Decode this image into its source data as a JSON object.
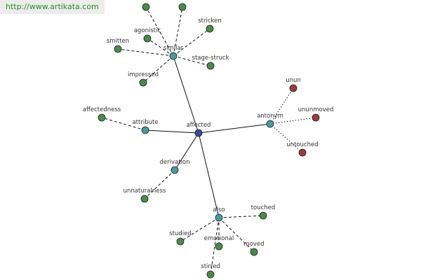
{
  "header": {
    "url": "http://www.artikata.com"
  },
  "nodes": [
    {
      "label": "affected"
    },
    {
      "label": "similar"
    },
    {
      "label": "attribute"
    },
    {
      "label": "derivation"
    },
    {
      "label": "also"
    },
    {
      "label": "antonym"
    },
    {
      "label": "agonistic"
    },
    {
      "label": "stricken"
    },
    {
      "label": "smitten"
    },
    {
      "label": "stage-struck"
    },
    {
      "label": "impressed"
    },
    {
      "label": "affectedness"
    },
    {
      "label": "unnaturalness"
    },
    {
      "label": "touched"
    },
    {
      "label": "studied"
    },
    {
      "label": "emotional"
    },
    {
      "label": "moved"
    },
    {
      "label": "stirred"
    },
    {
      "label": "unun"
    },
    {
      "label": "ununmoved"
    },
    {
      "label": "untouched"
    }
  ]
}
